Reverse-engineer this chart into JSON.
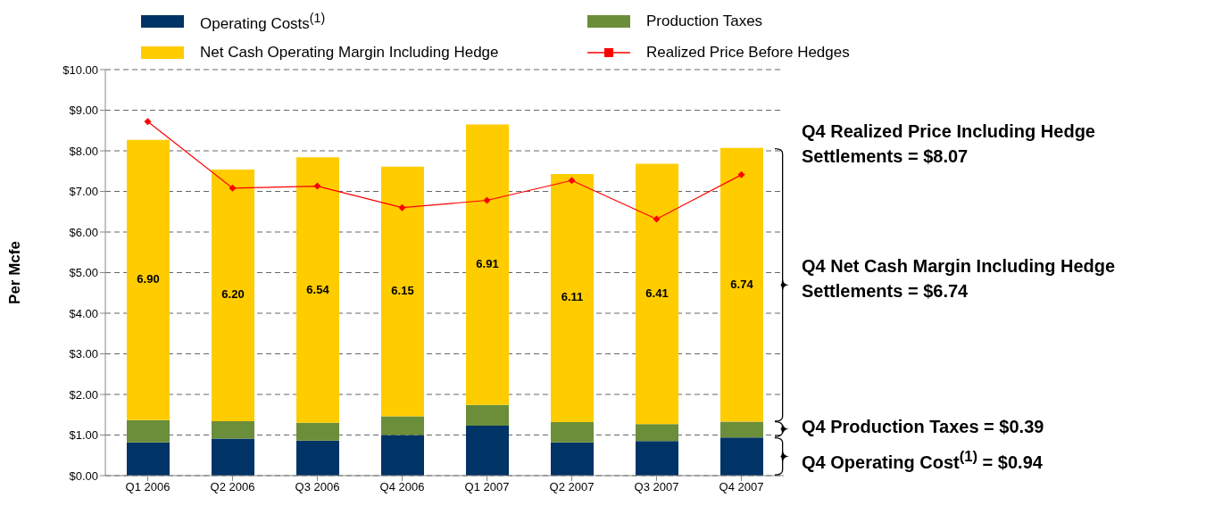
{
  "chart_data": {
    "type": "bar",
    "stacked": true,
    "ylabel": "Per Mcfe",
    "categories": [
      "Q1 2006",
      "Q2 2006",
      "Q3 2006",
      "Q4 2006",
      "Q1 2007",
      "Q2 2007",
      "Q3 2007",
      "Q4 2007"
    ],
    "series": [
      {
        "name": "Operating Costs$^{(1)}$",
        "color": "#003366",
        "values": [
          0.82,
          0.91,
          0.86,
          1.0,
          1.23,
          0.82,
          0.85,
          0.94
        ]
      },
      {
        "name": "Production Taxes",
        "color": "#6b8e3a",
        "values": [
          0.55,
          0.43,
          0.44,
          0.46,
          0.51,
          0.5,
          0.42,
          0.39
        ]
      },
      {
        "name": "Net Cash Operating Margin Including Hedge",
        "color": "#ffcc00",
        "values": [
          6.9,
          6.2,
          6.54,
          6.15,
          6.91,
          6.11,
          6.41,
          6.74
        ],
        "value_labels": [
          "6.90",
          "6.20",
          "6.54",
          "6.15",
          "6.91",
          "6.11",
          "6.41",
          "6.74"
        ]
      },
      {
        "name": "Realized Price Before Hedges",
        "type": "line",
        "color": "#ff0000",
        "marker": "diamond",
        "values": [
          8.72,
          7.08,
          7.13,
          6.6,
          6.78,
          7.27,
          6.32,
          7.41
        ]
      }
    ],
    "ylim": [
      0,
      10
    ],
    "yticks": [
      {
        "value": 0,
        "label": "$0.00"
      },
      {
        "value": 1,
        "label": "$1.00"
      },
      {
        "value": 2,
        "label": "$2.00"
      },
      {
        "value": 3,
        "label": "$3.00"
      },
      {
        "value": 4,
        "label": "$4.00"
      },
      {
        "value": 5,
        "label": "$5.00"
      },
      {
        "value": 6,
        "label": "$6.00"
      },
      {
        "value": 7,
        "label": "$7.00"
      },
      {
        "value": 8,
        "label": "$8.00"
      },
      {
        "value": 9,
        "label": "$9.00"
      },
      {
        "value": 10,
        "label": "$10.00"
      }
    ],
    "grid": "y",
    "legend": "top",
    "annotations": [
      "Q4 Realized Price Including Hedge Settlements = $8.07",
      "Q4 Net Cash Margin Including Hedge Settlements = $6.74",
      "Q4 Production Taxes =  $0.39",
      "Q4 Operating Cost$^{(1)}$ = $0.94"
    ]
  }
}
